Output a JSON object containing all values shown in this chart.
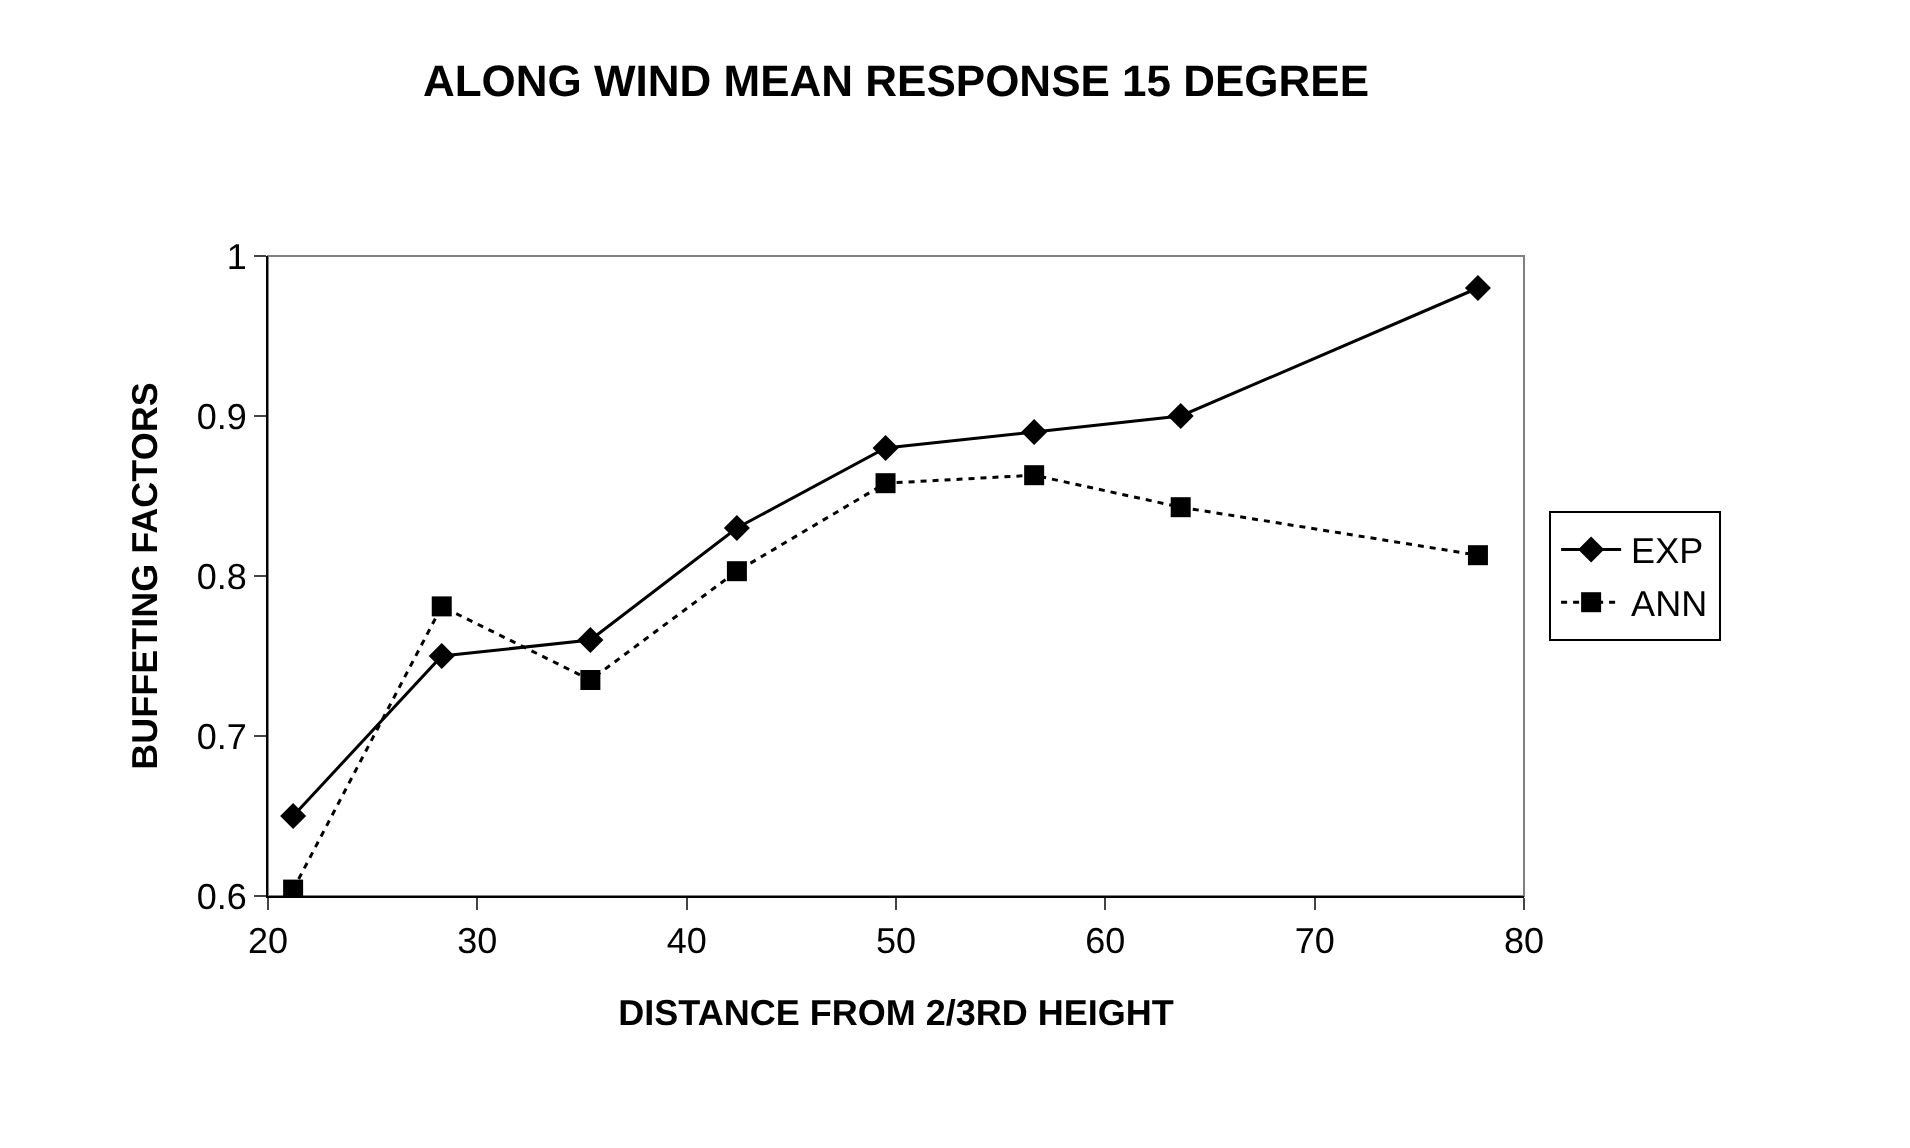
{
  "chart_data": {
    "type": "line",
    "title": "ALONG WIND MEAN RESPONSE 15 DEGREE",
    "xlabel": "DISTANCE FROM 2/3RD HEIGHT",
    "ylabel": "BUFFETING FACTORS",
    "x": [
      21.2,
      28.3,
      35.4,
      42.4,
      49.5,
      56.6,
      63.6,
      77.8
    ],
    "series": [
      {
        "name": "EXP",
        "color": "#000000",
        "marker": "diamond",
        "line_style": "solid",
        "values": [
          0.65,
          0.75,
          0.76,
          0.83,
          0.88,
          0.89,
          0.9,
          0.98
        ]
      },
      {
        "name": "ANN",
        "color": "#000000",
        "marker": "square",
        "line_style": "dotted",
        "values": [
          0.604,
          0.781,
          0.735,
          0.803,
          0.858,
          0.863,
          0.843,
          0.813
        ]
      }
    ],
    "xlim": [
      20,
      80
    ],
    "xticks": [
      20,
      30,
      40,
      50,
      60,
      70,
      80
    ],
    "ylim": [
      0.6,
      1
    ],
    "yticks": [
      0.6,
      0.7,
      0.8,
      0.9,
      1
    ],
    "grid": false,
    "legend": "right"
  }
}
